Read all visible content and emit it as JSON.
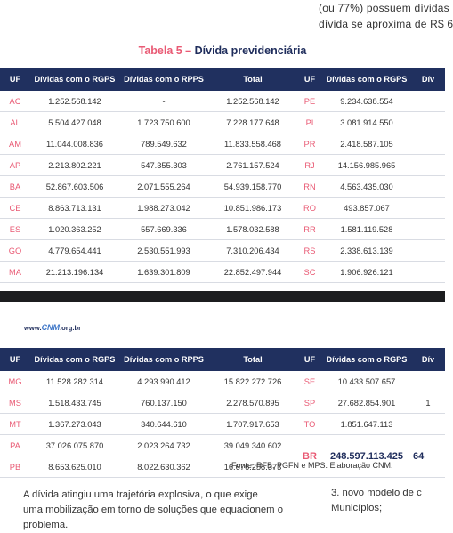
{
  "top_text": [
    "(ou 77%) possuem dívidas",
    "dívida se aproxima de R$ 6"
  ],
  "caption": {
    "number": "Tabela 5 –",
    "title": "Dívida previdenciária"
  },
  "table_headers": [
    "UF",
    "Dívidas com o RGPS",
    "Dívidas com o RPPS",
    "Total",
    "UF",
    "Dívidas com o RGPS",
    "Dív"
  ],
  "table1_rows": [
    [
      "AC",
      "1.252.568.142",
      "-",
      "1.252.568.142",
      "PE",
      "9.234.638.554"
    ],
    [
      "AL",
      "5.504.427.048",
      "1.723.750.600",
      "7.228.177.648",
      "PI",
      "3.081.914.550"
    ],
    [
      "AM",
      "11.044.008.836",
      "789.549.632",
      "11.833.558.468",
      "PR",
      "2.418.587.105"
    ],
    [
      "AP",
      "2.213.802.221",
      "547.355.303",
      "2.761.157.524",
      "RJ",
      "14.156.985.965"
    ],
    [
      "BA",
      "52.867.603.506",
      "2.071.555.264",
      "54.939.158.770",
      "RN",
      "4.563.435.030"
    ],
    [
      "CE",
      "8.863.713.131",
      "1.988.273.042",
      "10.851.986.173",
      "RO",
      "493.857.067"
    ],
    [
      "ES",
      "1.020.363.252",
      "557.669.336",
      "1.578.032.588",
      "RR",
      "1.581.119.528"
    ],
    [
      "GO",
      "4.779.654.441",
      "2.530.551.993",
      "7.310.206.434",
      "RS",
      "2.338.613.139"
    ],
    [
      "MA",
      "21.213.196.134",
      "1.639.301.809",
      "22.852.497.944",
      "SC",
      "1.906.926.121"
    ]
  ],
  "site": {
    "prefix": "www.",
    "brand": "CNM",
    "suffix": ".org.br"
  },
  "table2_rows": [
    [
      "MG",
      "11.528.282.314",
      "4.293.990.412",
      "15.822.272.726",
      "SE",
      "10.433.507.657",
      ""
    ],
    [
      "MS",
      "1.518.433.745",
      "760.137.150",
      "2.278.570.895",
      "SP",
      "27.682.854.901",
      "1"
    ],
    [
      "MT",
      "1.367.273.043",
      "340.644.610",
      "1.707.917.653",
      "TO",
      "1.851.647.113",
      ""
    ],
    [
      "PA",
      "37.026.075.870",
      "2.023.264.732",
      "39.049.340.602",
      "",
      "",
      ""
    ],
    [
      "PB",
      "8.653.625.010",
      "8.022.630.362",
      "16.676.255.373",
      "",
      "",
      ""
    ]
  ],
  "table2_total": {
    "label": "BR",
    "value": "248.597.113.425",
    "partial": "64"
  },
  "source": "Fonte: RFB, PGFN e MPS. Elaboração CNM.",
  "body_lines": [
    "A dívida atingiu uma trajetória explosiva, o que exige",
    "uma mobilização em torno de soluções que equacionem o",
    "problema."
  ],
  "side_lines": [
    "3. novo modelo de c",
    "Municípios;"
  ]
}
